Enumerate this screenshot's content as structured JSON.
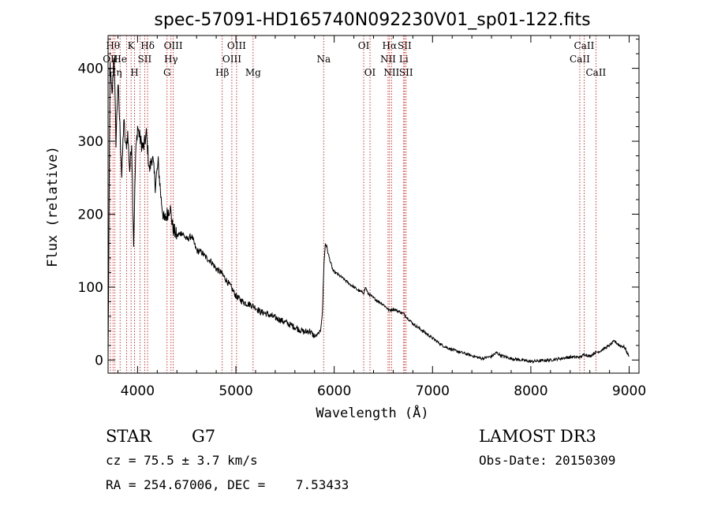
{
  "chart_data": {
    "type": "line",
    "title": "spec-57091-HD165740N092230V01_sp01-122.fits",
    "xlabel": "Wavelength (Å)",
    "ylabel": "Flux (relative)",
    "xlim": [
      3700,
      9100
    ],
    "ylim": [
      -18,
      445
    ],
    "xticks": [
      4000,
      5000,
      6000,
      7000,
      8000,
      9000
    ],
    "xtick_labels": [
      "4000",
      "5000",
      "6000",
      "7000",
      "8000",
      "9000"
    ],
    "yticks": [
      0,
      100,
      200,
      300,
      400
    ],
    "ytick_labels": [
      "0",
      "100",
      "200",
      "300",
      "400"
    ],
    "grid": false,
    "series": [
      {
        "values_note": "",
        "x": [
          3700,
          3720,
          3740,
          3760,
          3780,
          3800,
          3820,
          3840,
          3860,
          3880,
          3900,
          3920,
          3940,
          3960,
          3980,
          4000,
          4030,
          4060,
          4090,
          4120,
          4150,
          4180,
          4210,
          4240,
          4270,
          4300,
          4330,
          4360,
          4400,
          4450,
          4500,
          4550,
          4600,
          4650,
          4700,
          4750,
          4800,
          4850,
          4900,
          4950,
          5000,
          5050,
          5100,
          5150,
          5200,
          5250,
          5300,
          5400,
          5500,
          5600,
          5700,
          5750,
          5800,
          5830,
          5860,
          5880,
          5895,
          5910,
          5925,
          5940,
          5960,
          5990,
          6030,
          6080,
          6150,
          6250,
          6300,
          6320,
          6340,
          6400,
          6500,
          6560,
          6600,
          6700,
          6800,
          6900,
          7000,
          7100,
          7200,
          7300,
          7400,
          7500,
          7600,
          7650,
          7700,
          7800,
          7900,
          8000,
          8100,
          8200,
          8300,
          8400,
          8500,
          8550,
          8600,
          8650,
          8700,
          8750,
          8800,
          8850,
          8900,
          8950,
          9000
        ],
        "y": [
          0,
          405,
          360,
          420,
          300,
          380,
          320,
          250,
          330,
          290,
          310,
          260,
          300,
          160,
          280,
          320,
          300,
          290,
          310,
          260,
          280,
          240,
          270,
          220,
          190,
          200,
          210,
          180,
          170,
          175,
          165,
          170,
          150,
          148,
          140,
          135,
          125,
          120,
          110,
          100,
          88,
          82,
          78,
          76,
          72,
          66,
          64,
          58,
          52,
          45,
          38,
          40,
          32,
          35,
          40,
          65,
          130,
          160,
          155,
          145,
          135,
          122,
          118,
          113,
          105,
          95,
          92,
          100,
          92,
          85,
          76,
          68,
          70,
          64,
          50,
          40,
          30,
          20,
          14,
          10,
          6,
          2,
          5,
          10,
          6,
          2,
          0,
          -2,
          -1,
          0,
          2,
          4,
          4,
          8,
          5,
          10,
          12,
          16,
          20,
          26,
          20,
          18,
          5
        ]
      }
    ],
    "lines": [
      {
        "x": 3723,
        "label": "OII",
        "row": 2
      },
      {
        "x": 3750,
        "label": "Hθ",
        "row": 1
      },
      {
        "x": 3770,
        "label": "Hη",
        "row": 3
      },
      {
        "x": 3822,
        "label": "He",
        "row": 2
      },
      {
        "x": 3889,
        "label": "",
        "row": 0
      },
      {
        "x": 3934,
        "label": "K",
        "row": 1
      },
      {
        "x": 3969,
        "label": "H",
        "row": 3
      },
      {
        "x": 4026,
        "label": "",
        "row": 0
      },
      {
        "x": 4072,
        "label": "SII",
        "row": 2
      },
      {
        "x": 4102,
        "label": "Hδ",
        "row": 1
      },
      {
        "x": 4300,
        "label": "G",
        "row": 3
      },
      {
        "x": 4340,
        "label": "Hγ",
        "row": 2
      },
      {
        "x": 4363,
        "label": "OIII",
        "row": 1
      },
      {
        "x": 4861,
        "label": "Hβ",
        "row": 3
      },
      {
        "x": 4959,
        "label": "OIII",
        "row": 2
      },
      {
        "x": 5007,
        "label": "OIII",
        "row": 1
      },
      {
        "x": 5175,
        "label": "Mg",
        "row": 3
      },
      {
        "x": 5893,
        "label": "Na",
        "row": 2
      },
      {
        "x": 6300,
        "label": "OI",
        "row": 1
      },
      {
        "x": 6364,
        "label": "OI",
        "row": 3
      },
      {
        "x": 6548,
        "label": "NII",
        "row": 2
      },
      {
        "x": 6563,
        "label": "Hα",
        "row": 1
      },
      {
        "x": 6583,
        "label": "NII",
        "row": 3
      },
      {
        "x": 6707,
        "label": "Li",
        "row": 2
      },
      {
        "x": 6716,
        "label": "SII",
        "row": 1
      },
      {
        "x": 6731,
        "label": "SII",
        "row": 3
      },
      {
        "x": 8498,
        "label": "CaII",
        "row": 2
      },
      {
        "x": 8542,
        "label": "CaII",
        "row": 1
      },
      {
        "x": 8662,
        "label": "CaII",
        "row": 3
      }
    ],
    "line_color": "#cc0000"
  },
  "info": {
    "class": "STAR",
    "subclass": "G7",
    "survey": "LAMOST DR3",
    "cz": "cz = 75.5 ± 3.7 km/s",
    "obs_date": "Obs-Date: 20150309",
    "radec": "RA = 254.67006, DEC =    7.53433"
  }
}
